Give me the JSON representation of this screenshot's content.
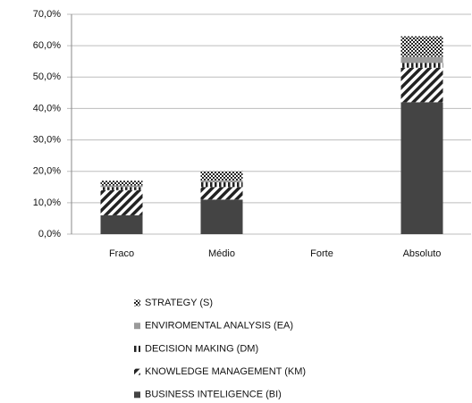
{
  "chart_data": {
    "type": "stacked_bar",
    "categories": [
      "Fraco",
      "Médio",
      "Forte",
      "Absoluto"
    ],
    "series": [
      {
        "name": "BUSINESS INTELIGENCE (BI)",
        "color": "#444444",
        "pattern": "solid",
        "values": [
          6,
          11,
          0,
          42
        ]
      },
      {
        "name": "KNOWLEDGE MANAGEMENT (KM)",
        "color": "#222222",
        "pattern": "diagonal",
        "values": [
          8,
          4,
          0,
          11
        ]
      },
      {
        "name": "DECISION MAKING (DM)",
        "color": "#222222",
        "pattern": "vertical",
        "values": [
          1,
          1.5,
          0,
          1.5
        ]
      },
      {
        "name": "ENVIROMENTAL ANALYSIS (EA)",
        "color": "#9a9a9a",
        "pattern": "solid",
        "values": [
          0.5,
          0.5,
          0,
          2
        ]
      },
      {
        "name": "STRATEGY (S)",
        "color": "#333333",
        "pattern": "dots",
        "values": [
          1.5,
          3,
          0,
          6.5
        ]
      }
    ],
    "ylim": [
      0,
      70
    ],
    "yticks": [
      {
        "value": 0,
        "label": "0,0%"
      },
      {
        "value": 10,
        "label": "10,0%"
      },
      {
        "value": 20,
        "label": "20,0%"
      },
      {
        "value": 30,
        "label": "30,0%"
      },
      {
        "value": 40,
        "label": "40,0%"
      },
      {
        "value": 50,
        "label": "50,0%"
      },
      {
        "value": 60,
        "label": "60,0%"
      },
      {
        "value": 70,
        "label": "70,0%"
      }
    ],
    "grid": true,
    "legend": "bottom"
  }
}
